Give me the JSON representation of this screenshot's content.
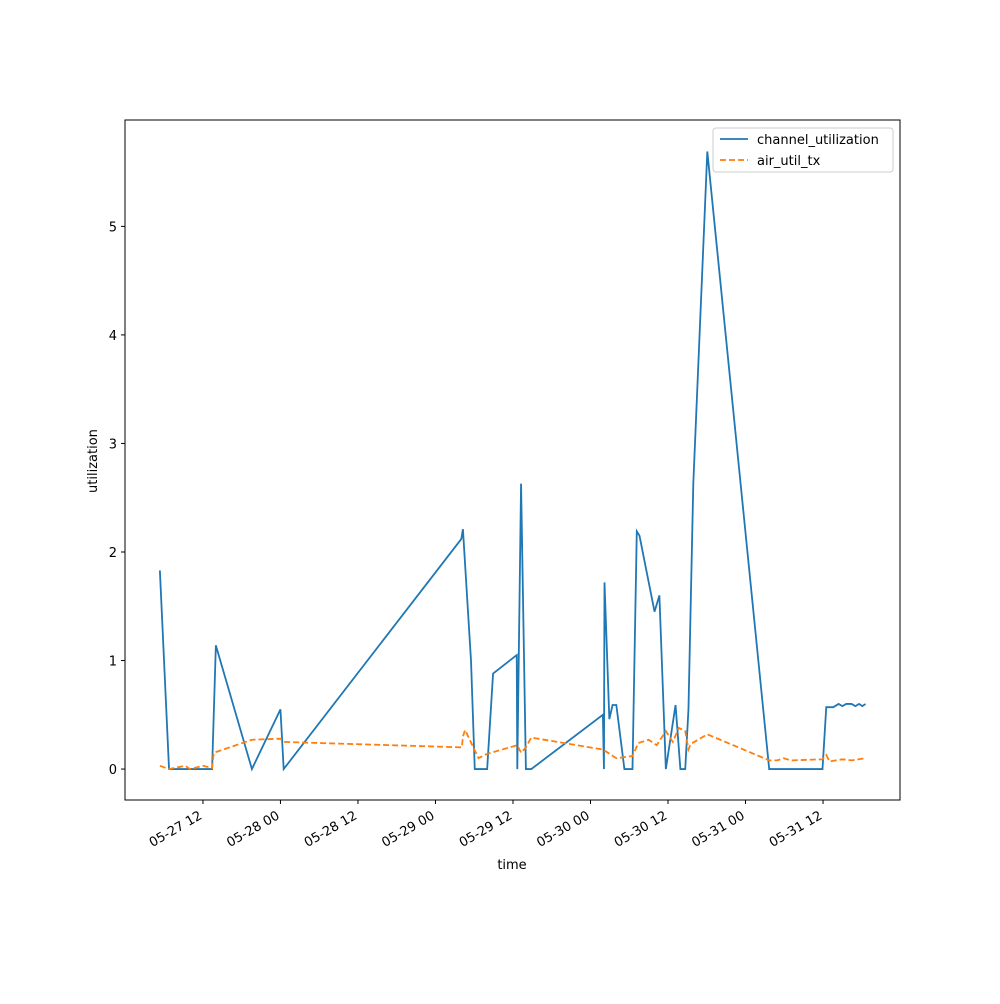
{
  "chart_data": {
    "type": "line",
    "xlabel": "time",
    "ylabel": "utilization",
    "xlim": [
      "05-26 23:56",
      "05-31 23:55"
    ],
    "xticks": [
      {
        "value": "05-27 12:00",
        "label": "05-27 12"
      },
      {
        "value": "05-28 00:00",
        "label": "05-28 00"
      },
      {
        "value": "05-28 12:00",
        "label": "05-28 12"
      },
      {
        "value": "05-29 00:00",
        "label": "05-29 00"
      },
      {
        "value": "05-29 12:00",
        "label": "05-29 12"
      },
      {
        "value": "05-30 00:00",
        "label": "05-30 00"
      },
      {
        "value": "05-30 12:00",
        "label": "05-30 12"
      },
      {
        "value": "05-31 00:00",
        "label": "05-31 00"
      },
      {
        "value": "05-31 12:00",
        "label": "05-31 12"
      }
    ],
    "ylim": [
      -0.285,
      5.98
    ],
    "yticks": [
      0,
      1,
      2,
      3,
      4,
      5
    ],
    "legend": "upper right",
    "series": [
      {
        "name": "channel_utilization",
        "color": "#1f77b4",
        "dash": "solid",
        "x": [
          "05-27 05:20",
          "05-27 06:45",
          "05-27 13:25",
          "05-27 14:00",
          "05-27 19:35",
          "05-28 00:00",
          "05-28 00:30",
          "05-29 04:00",
          "05-29 04:15",
          "05-29 05:30",
          "05-29 06:05",
          "05-29 08:00",
          "05-29 08:55",
          "05-29 12:35",
          "05-29 12:40",
          "05-29 13:15",
          "05-29 14:00",
          "05-29 14:50",
          "05-30 01:55",
          "05-30 02:05",
          "05-30 02:10",
          "05-30 02:55",
          "05-30 03:25",
          "05-30 04:00",
          "05-30 05:15",
          "05-30 06:30",
          "05-30 07:10",
          "05-30 07:35",
          "05-30 09:55",
          "05-30 10:40",
          "05-30 11:40",
          "05-30 13:10",
          "05-30 13:55",
          "05-30 14:40",
          "05-30 15:10",
          "05-30 15:55",
          "05-30 18:05",
          "05-31 03:40",
          "05-31 11:55",
          "05-31 12:30",
          "05-31 13:35",
          "05-31 14:25",
          "05-31 15:00",
          "05-31 15:35",
          "05-31 16:25",
          "05-31 17:00",
          "05-31 17:35",
          "05-31 18:05",
          "05-31 18:35"
        ],
        "values": [
          1.83,
          0,
          0,
          1.14,
          0,
          0.55,
          0,
          2.12,
          2.21,
          1.0,
          0,
          0,
          0.88,
          1.05,
          0,
          2.63,
          0,
          0,
          0.5,
          0,
          1.72,
          0.46,
          0.59,
          0.59,
          0,
          0,
          2.19,
          2.15,
          1.45,
          1.6,
          0,
          0.59,
          0,
          0,
          0.55,
          2.63,
          5.69,
          0,
          0,
          0.57,
          0.57,
          0.6,
          0.58,
          0.6,
          0.6,
          0.58,
          0.6,
          0.58,
          0.6
        ]
      },
      {
        "name": "air_util_tx",
        "color": "#ff7f0e",
        "dash": "dashed",
        "x": [
          "05-27 05:20",
          "05-27 06:45",
          "05-27 09:15",
          "05-27 10:00",
          "05-27 12:00",
          "05-27 13:25",
          "05-27 13:40",
          "05-27 19:35",
          "05-28 00:00",
          "05-28 00:30",
          "05-29 04:05",
          "05-29 04:15",
          "05-29 04:35",
          "05-29 06:40",
          "05-29 08:00",
          "05-29 12:40",
          "05-29 13:15",
          "05-29 14:00",
          "05-29 14:50",
          "05-30 01:55",
          "05-30 04:00",
          "05-30 06:30",
          "05-30 07:25",
          "05-30 09:00",
          "05-30 10:15",
          "05-30 11:40",
          "05-30 12:45",
          "05-30 13:40",
          "05-30 14:40",
          "05-30 15:10",
          "05-30 15:30",
          "05-30 18:05",
          "05-31 03:40",
          "05-31 04:55",
          "05-31 05:55",
          "05-31 07:00",
          "05-31 11:55",
          "05-31 12:30",
          "05-31 13:00",
          "05-31 15:00",
          "05-31 16:25",
          "05-31 18:35"
        ],
        "values": [
          0.03,
          0.0,
          0.03,
          0.0,
          0.03,
          0.01,
          0.15,
          0.27,
          0.28,
          0.25,
          0.2,
          0.3,
          0.36,
          0.1,
          0.14,
          0.22,
          0.15,
          0.2,
          0.29,
          0.18,
          0.1,
          0.12,
          0.24,
          0.27,
          0.22,
          0.35,
          0.25,
          0.38,
          0.35,
          0.18,
          0.23,
          0.32,
          0.08,
          0.08,
          0.1,
          0.08,
          0.09,
          0.13,
          0.07,
          0.09,
          0.08,
          0.1
        ]
      }
    ]
  }
}
